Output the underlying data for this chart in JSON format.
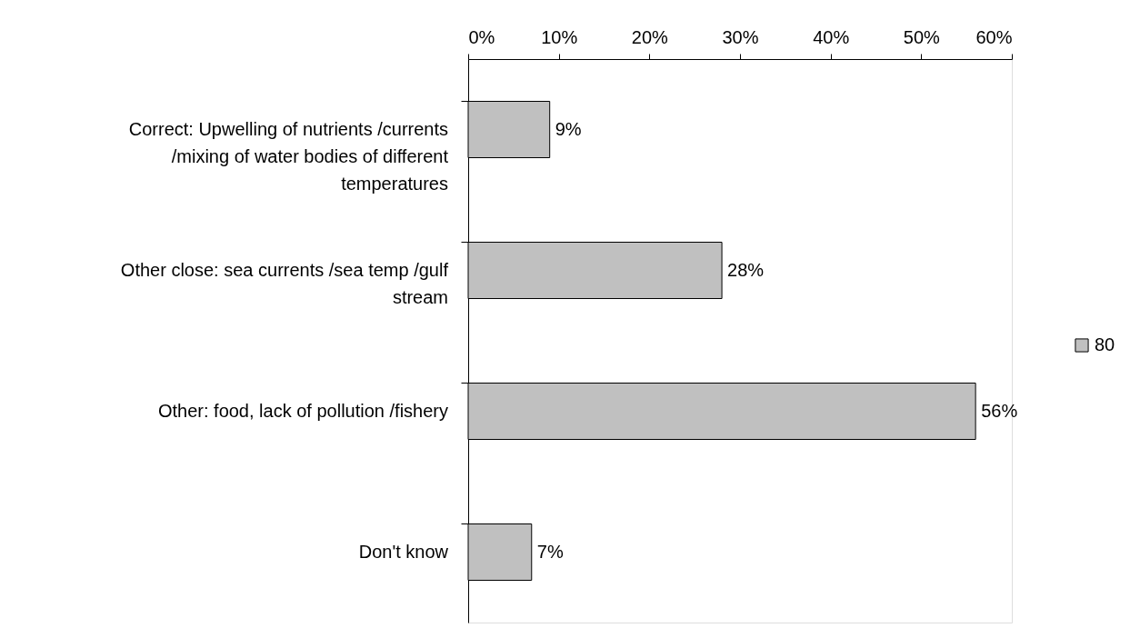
{
  "chart_data": {
    "type": "bar",
    "orientation": "horizontal",
    "categories": [
      "Correct: Upwelling of nutrients /currents /mixing of water bodies of different temperatures",
      "Other close: sea currents /sea temp /gulf stream",
      "Other: food, lack of pollution /fishery",
      "Don't know"
    ],
    "series": [
      {
        "name": "80",
        "color": "#c0c0c0",
        "values": [
          9,
          28,
          56,
          7
        ],
        "value_labels": [
          "9%",
          "28%",
          "56%",
          "7%"
        ]
      }
    ],
    "xlim": [
      0,
      60
    ],
    "xticks": [
      {
        "value": 0,
        "label": "0%"
      },
      {
        "value": 10,
        "label": "10%"
      },
      {
        "value": 20,
        "label": "20%"
      },
      {
        "value": 30,
        "label": "30%"
      },
      {
        "value": 40,
        "label": "40%"
      },
      {
        "value": 50,
        "label": "50%"
      },
      {
        "value": 60,
        "label": "60%"
      }
    ],
    "grid": false,
    "legend": "right"
  }
}
